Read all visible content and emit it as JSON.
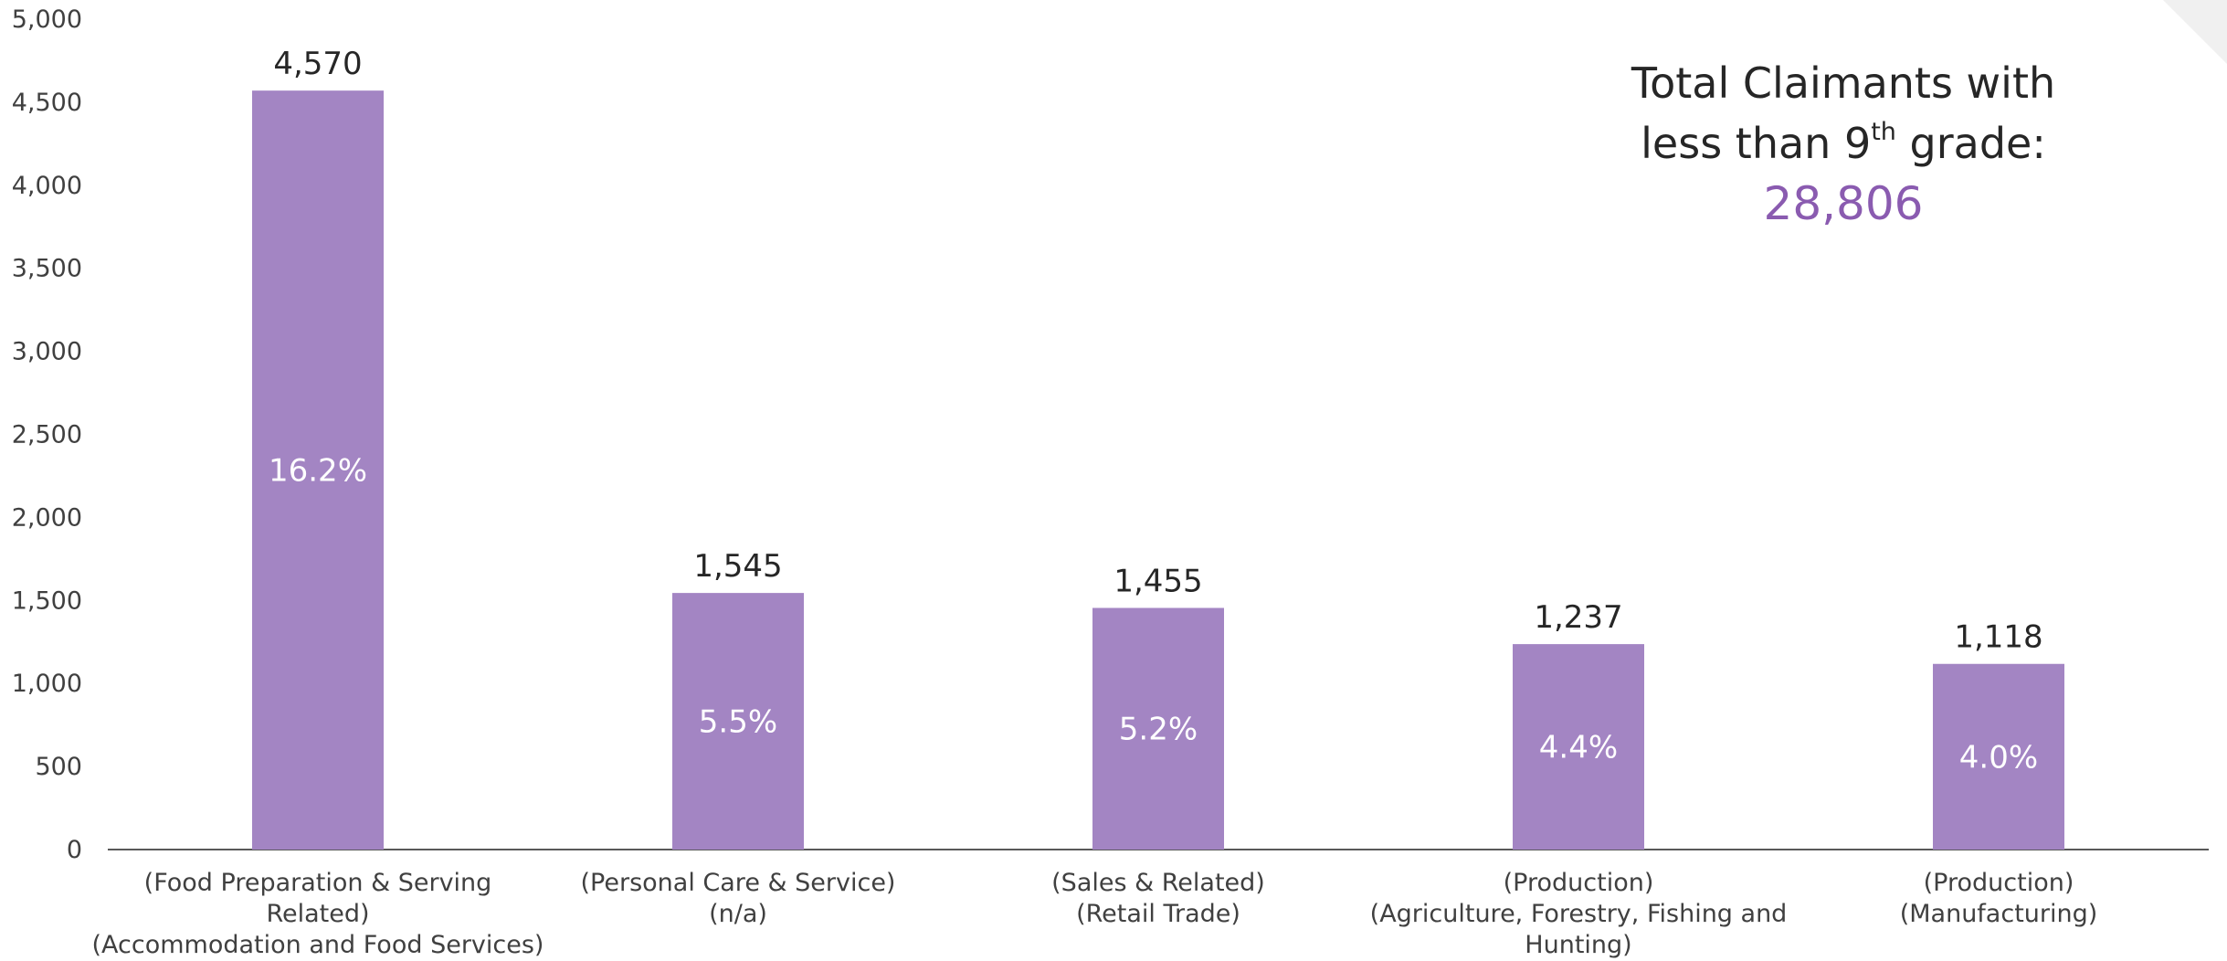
{
  "colors": {
    "bar": "#a385c3",
    "axis": "#595959",
    "accent_total": "#8a5bb0"
  },
  "annotation": {
    "line1": "Total Claimants with",
    "line2_before_sup": "less than 9",
    "line2_sup": "th",
    "line2_after_sup": " grade:",
    "total_value": "28,806"
  },
  "chart_data": {
    "type": "bar",
    "title": "",
    "xlabel": "",
    "ylabel": "",
    "ylim": [
      0,
      5000
    ],
    "yticks": [
      0,
      500,
      1000,
      1500,
      2000,
      2500,
      3000,
      3500,
      4000,
      4500,
      5000
    ],
    "ytick_labels": [
      "0",
      "500",
      "1,000",
      "1,500",
      "2,000",
      "2,500",
      "3,000",
      "3,500",
      "4,000",
      "4,500",
      "5,000"
    ],
    "grid": false,
    "categories": [
      [
        "(Food Preparation & Serving",
        "Related)",
        "(Accommodation and Food Services)"
      ],
      [
        "(Personal Care & Service)",
        "(n/a)"
      ],
      [
        "(Sales & Related)",
        "(Retail Trade)"
      ],
      [
        "(Production)",
        "(Agriculture, Forestry, Fishing and",
        "Hunting)"
      ],
      [
        "(Production)",
        "(Manufacturing)"
      ]
    ],
    "values": [
      4570,
      1545,
      1455,
      1237,
      1118
    ],
    "value_labels": [
      "4,570",
      "1,545",
      "1,455",
      "1,237",
      "1,118"
    ],
    "percent_labels": [
      "16.2%",
      "5.5%",
      "5.2%",
      "4.4%",
      "4.0%"
    ]
  }
}
